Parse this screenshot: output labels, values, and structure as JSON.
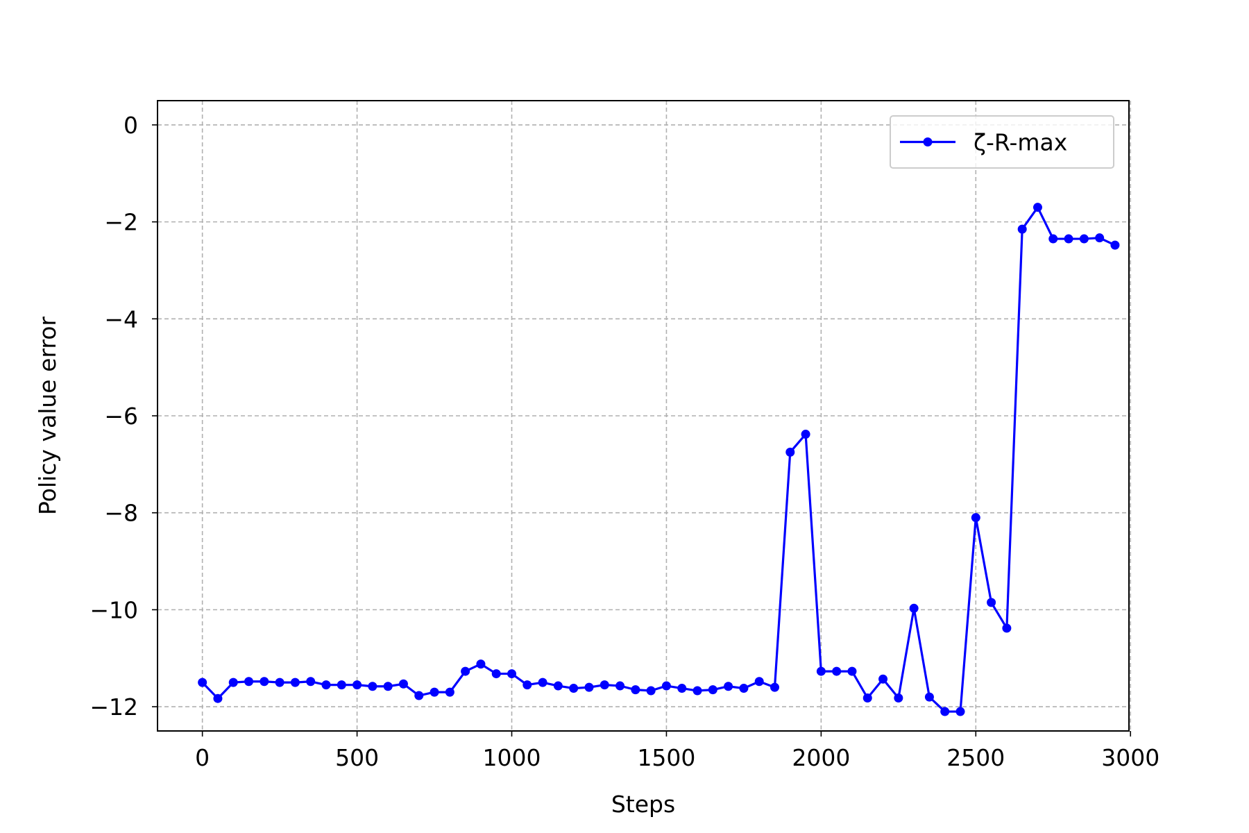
{
  "chart_data": {
    "type": "line",
    "title": "",
    "xlabel": "Steps",
    "ylabel": "Policy value error",
    "xlim": [
      -145,
      2995
    ],
    "ylim": [
      -12.5,
      0.5
    ],
    "xticks": [
      0,
      500,
      1000,
      1500,
      2000,
      2500,
      3000
    ],
    "xtick_labels": [
      "0",
      "500",
      "1000",
      "1500",
      "2000",
      "2500",
      "3000"
    ],
    "yticks": [
      0,
      -2,
      -4,
      -6,
      -8,
      -10,
      -12
    ],
    "ytick_labels": [
      "0",
      "−2",
      "−4",
      "−6",
      "−8",
      "−10",
      "−12"
    ],
    "grid": true,
    "legend_position": "top-right",
    "series": [
      {
        "name": "ζ-R-max",
        "color": "#0000ff",
        "marker": "circle",
        "x": [
          0,
          50,
          100,
          150,
          200,
          250,
          300,
          350,
          400,
          450,
          500,
          550,
          600,
          650,
          700,
          750,
          800,
          850,
          900,
          950,
          1000,
          1050,
          1100,
          1150,
          1200,
          1250,
          1300,
          1350,
          1400,
          1450,
          1500,
          1550,
          1600,
          1650,
          1700,
          1750,
          1800,
          1850,
          1900,
          1950,
          2000,
          2050,
          2100,
          2150,
          2200,
          2250,
          2300,
          2350,
          2400,
          2450,
          2500,
          2550,
          2600,
          2650,
          2700,
          2750,
          2800,
          2850,
          2900,
          2950
        ],
        "y": [
          -11.5,
          -11.83,
          -11.5,
          -11.48,
          -11.48,
          -11.5,
          -11.5,
          -11.48,
          -11.55,
          -11.55,
          -11.55,
          -11.58,
          -11.58,
          -11.53,
          -11.77,
          -11.7,
          -11.7,
          -11.27,
          -11.12,
          -11.32,
          -11.32,
          -11.55,
          -11.5,
          -11.57,
          -11.62,
          -11.6,
          -11.55,
          -11.57,
          -11.65,
          -11.67,
          -11.57,
          -11.62,
          -11.67,
          -11.65,
          -11.58,
          -11.62,
          -11.48,
          -11.6,
          -6.75,
          -6.38,
          -11.27,
          -11.27,
          -11.27,
          -11.82,
          -11.43,
          -11.82,
          -9.97,
          -11.8,
          -12.1,
          -12.1,
          -8.1,
          -9.85,
          -10.38,
          -2.15,
          -1.7,
          -2.35,
          -2.35,
          -2.35,
          -2.33,
          -2.48
        ]
      }
    ]
  }
}
